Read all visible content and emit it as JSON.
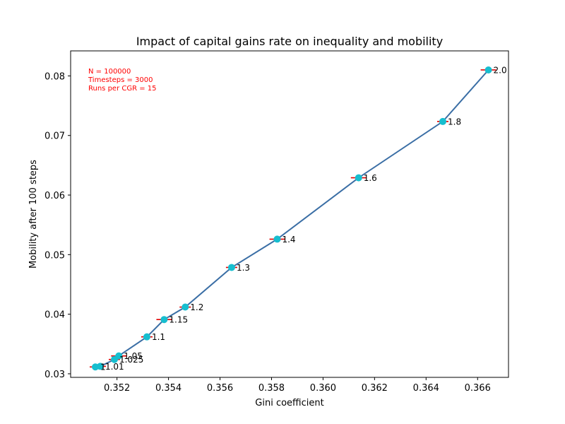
{
  "chart_data": {
    "type": "line",
    "title": "Impact of capital gains rate on inequality and mobility",
    "xlabel": "Gini coefficient",
    "ylabel": "Mobility after 100 steps",
    "xlim": [
      0.3502,
      0.3672
    ],
    "ylim": [
      0.0294,
      0.0842
    ],
    "xticks": [
      0.352,
      0.354,
      0.356,
      0.358,
      0.36,
      0.362,
      0.364,
      0.366
    ],
    "xtick_labels": [
      "0.352",
      "0.354",
      "0.356",
      "0.358",
      "0.360",
      "0.362",
      "0.364",
      "0.366"
    ],
    "yticks": [
      0.03,
      0.04,
      0.05,
      0.06,
      0.07,
      0.08
    ],
    "ytick_labels": [
      "0.03",
      "0.04",
      "0.05",
      "0.06",
      "0.07",
      "0.08"
    ],
    "grid": false,
    "annotation_lines": [
      "N = 100000",
      "Timesteps = 3000",
      "Runs per CGR = 15"
    ],
    "colors": {
      "line": "#3a6ea5",
      "marker": "#17becf",
      "error": "#e00000",
      "annotation": "#ff0000"
    },
    "points": [
      {
        "label": "1",
        "x": 0.35116,
        "y": 0.03115,
        "xerr": 0.00022
      },
      {
        "label": "1.01",
        "x": 0.35135,
        "y": 0.03125,
        "xerr": 0.00022
      },
      {
        "label": "1.025",
        "x": 0.3519,
        "y": 0.0324,
        "xerr": 0.00022
      },
      {
        "label": "1.05",
        "x": 0.35207,
        "y": 0.033,
        "xerr": 0.0003
      },
      {
        "label": "1.1",
        "x": 0.35316,
        "y": 0.0362,
        "xerr": 0.00022
      },
      {
        "label": "1.15",
        "x": 0.35383,
        "y": 0.0391,
        "xerr": 0.0003
      },
      {
        "label": "1.2",
        "x": 0.35465,
        "y": 0.0412,
        "xerr": 0.00022
      },
      {
        "label": "1.3",
        "x": 0.35645,
        "y": 0.04785,
        "xerr": 0.00022
      },
      {
        "label": "1.4",
        "x": 0.35822,
        "y": 0.0526,
        "xerr": 0.0003
      },
      {
        "label": "1.6",
        "x": 0.36138,
        "y": 0.0629,
        "xerr": 0.0003
      },
      {
        "label": "1.8",
        "x": 0.36465,
        "y": 0.07235,
        "xerr": 0.00022
      },
      {
        "label": "2.0",
        "x": 0.36642,
        "y": 0.081,
        "xerr": 0.0003
      }
    ]
  }
}
